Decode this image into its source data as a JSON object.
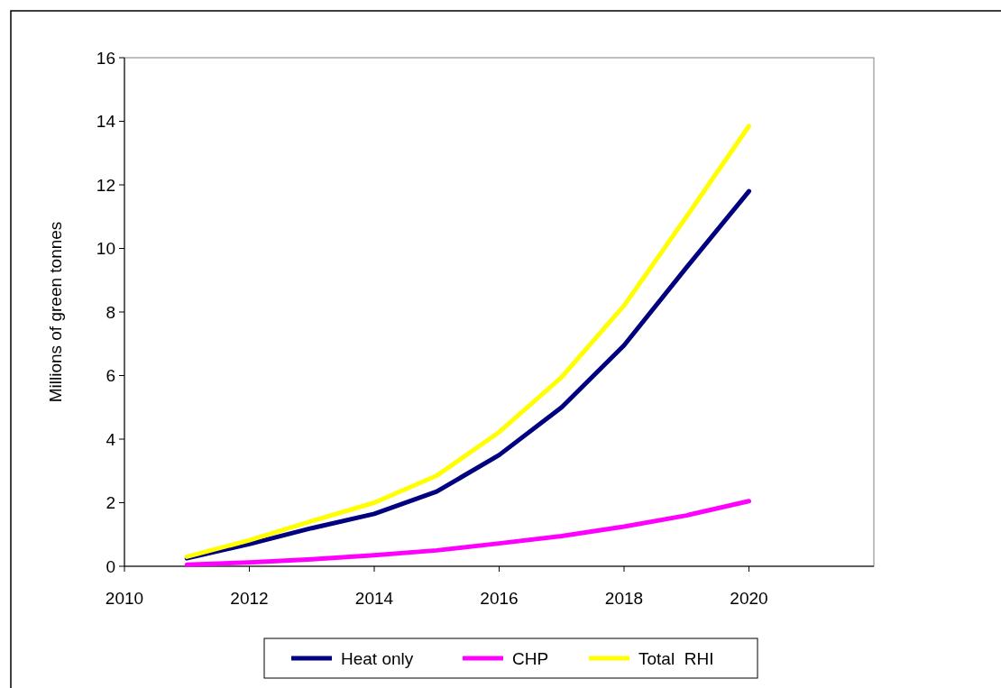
{
  "chart_data": {
    "type": "line",
    "ylabel": "Millions of green tonnes",
    "x": [
      2011,
      2012,
      2013,
      2014,
      2015,
      2016,
      2017,
      2018,
      2019,
      2020
    ],
    "series": [
      {
        "name": "Heat only",
        "color": "#000080",
        "values": [
          0.25,
          0.7,
          1.2,
          1.65,
          2.35,
          3.5,
          5.0,
          6.95,
          9.4,
          11.8
        ]
      },
      {
        "name": "CHP",
        "color": "#ff00ff",
        "values": [
          0.05,
          0.12,
          0.22,
          0.35,
          0.5,
          0.72,
          0.95,
          1.25,
          1.6,
          2.05
        ]
      },
      {
        "name": "Total  RHI",
        "color": "#ffff00",
        "values": [
          0.3,
          0.82,
          1.42,
          2.0,
          2.85,
          4.22,
          5.95,
          8.2,
          11.0,
          13.85
        ]
      }
    ],
    "xlim": [
      2010,
      2022
    ],
    "xticks": [
      2010,
      2012,
      2014,
      2016,
      2018,
      2020
    ],
    "ylim": [
      0,
      16
    ],
    "yticks": [
      0,
      2,
      4,
      6,
      8,
      10,
      12,
      14,
      16
    ],
    "grid": false,
    "legend": "bottom",
    "marker": "none",
    "line_style": "solid"
  }
}
